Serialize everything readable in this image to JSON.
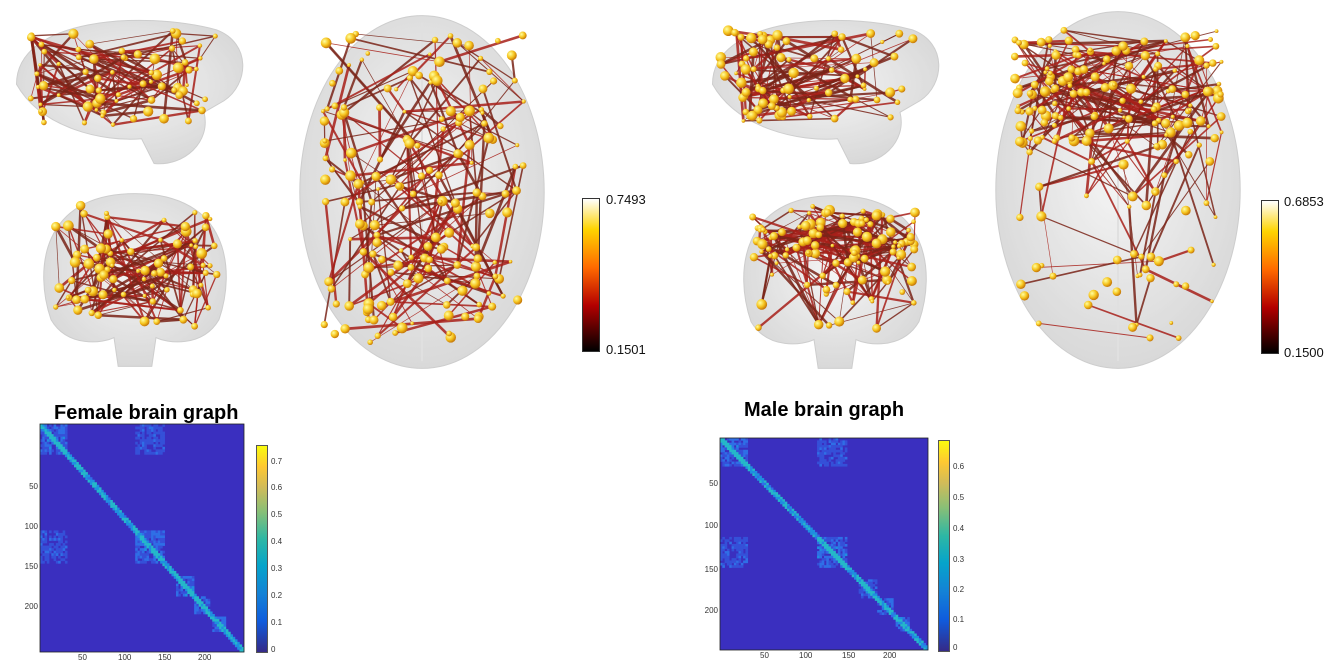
{
  "panels": [
    {
      "title": "Female brain graph",
      "colorbar": {
        "max": "0.7493",
        "min": "0.1501"
      },
      "matrix_ticks": {
        "y": [
          "50",
          "100",
          "150",
          "200"
        ],
        "x": [
          "50",
          "100",
          "150",
          "200"
        ],
        "cbar": [
          "0.7",
          "0.6",
          "0.5",
          "0.4",
          "0.3",
          "0.2",
          "0.1",
          "0"
        ]
      }
    },
    {
      "title": "Male brain graph",
      "colorbar": {
        "max": "0.6853",
        "min": "0.1500"
      },
      "matrix_ticks": {
        "y": [
          "50",
          "100",
          "150",
          "200"
        ],
        "x": [
          "50",
          "100",
          "150",
          "200"
        ],
        "cbar": [
          "0.6",
          "0.5",
          "0.4",
          "0.3",
          "0.2",
          "0.1",
          "0"
        ]
      }
    }
  ],
  "colors": {
    "brain_shell": "#d6d6d6",
    "edge": "#a8201a",
    "node": "#f5c21b",
    "matrix_bg": "#3a2fbf",
    "colorbar_hot": [
      "#000000",
      "#b30000",
      "#ff6a00",
      "#ffd400",
      "#ffffff"
    ],
    "colorbar_parula": [
      "#352a87",
      "#0f5cdd",
      "#1481d6",
      "#06a4ca",
      "#2eb7a4",
      "#87bf77",
      "#d1bb59",
      "#fec832",
      "#f9fb0e"
    ]
  }
}
